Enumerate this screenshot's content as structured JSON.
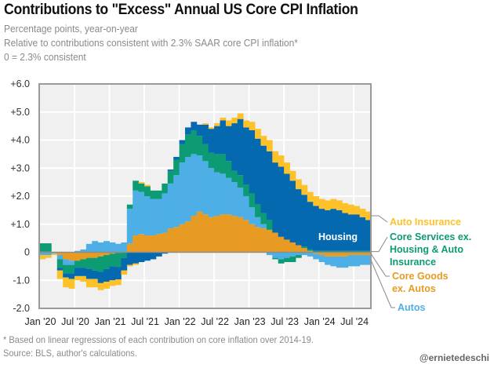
{
  "header": {
    "title": "Contributions to \"Excess\" Annual US Core CPI Inflation",
    "subtitle_lines": [
      "Percentage points, year-on-year",
      "Relative to contributions consistent with 2.3% SAAR core CPI inflation*",
      "0 = 2.3% consistent"
    ]
  },
  "footer": {
    "note": "* Based on linear regressions of each contribution on core inflation over 2014-19.",
    "source": "Source: BLS, author's calculations.",
    "handle": "@ernietedeschi"
  },
  "chart_data": {
    "type": "bar",
    "stacked": true,
    "title": "Contributions to \"Excess\" Annual US Core CPI Inflation",
    "ylabel": "Percentage points, year-on-year",
    "xlabel": "",
    "ylim": [
      -2.0,
      6.0
    ],
    "yticks": [
      6,
      5,
      4,
      3,
      2,
      1,
      0,
      -1,
      -2
    ],
    "ytick_labels": [
      "+6.0",
      "+5.0",
      "+4.0",
      "+3.0",
      "+2.0",
      "+1.0",
      "0",
      "-1.0",
      "-2.0"
    ],
    "xtick_labels": [
      "Jan '20",
      "Jul '20",
      "Jan '21",
      "Jul '21",
      "Jan '22",
      "Jul '22",
      "Jan '23",
      "Jul '23",
      "Jan '24",
      "Jul '24"
    ],
    "xtick_month_index": [
      0,
      6,
      12,
      18,
      24,
      30,
      36,
      42,
      48,
      54
    ],
    "grid": true,
    "x_start": "Jan 2020",
    "x_frequency": "monthly",
    "inline_label": "Housing",
    "series": [
      {
        "name": "Core Goods ex. Autos",
        "color": "#E89B22",
        "values": [
          0.02,
          0.02,
          0.0,
          -0.1,
          -0.25,
          -0.3,
          -0.3,
          -0.25,
          -0.2,
          -0.2,
          -0.15,
          -0.1,
          -0.05,
          -0.02,
          0.0,
          0.3,
          0.6,
          0.65,
          0.6,
          0.6,
          0.65,
          0.7,
          0.85,
          0.9,
          1.0,
          1.1,
          1.3,
          1.45,
          1.35,
          1.25,
          1.3,
          1.35,
          1.35,
          1.3,
          1.25,
          1.15,
          1.0,
          0.9,
          0.85,
          0.8,
          0.7,
          0.55,
          0.45,
          0.35,
          0.25,
          0.15,
          0.05,
          -0.05,
          -0.1,
          -0.15,
          -0.15,
          -0.15,
          -0.15,
          -0.1,
          -0.1,
          -0.1,
          -0.1
        ]
      },
      {
        "name": "Autos",
        "color": "#4DAFE6",
        "values": [
          -0.1,
          -0.1,
          -0.05,
          -0.15,
          -0.2,
          -0.15,
          0.05,
          0.1,
          0.3,
          0.4,
          0.35,
          0.4,
          0.35,
          0.3,
          0.35,
          1.25,
          1.6,
          1.5,
          1.4,
          1.3,
          1.25,
          1.4,
          1.6,
          1.85,
          2.2,
          2.3,
          2.2,
          2.0,
          1.9,
          1.75,
          1.55,
          1.45,
          1.3,
          1.2,
          1.05,
          0.85,
          0.6,
          0.35,
          0.15,
          -0.1,
          -0.2,
          -0.25,
          -0.2,
          -0.15,
          -0.1,
          -0.1,
          -0.15,
          -0.2,
          -0.25,
          -0.3,
          -0.35,
          -0.4,
          -0.4,
          -0.4,
          -0.4,
          -0.35,
          -0.35
        ]
      },
      {
        "name": "Core Services ex. Housing & Auto Insurance",
        "color": "#0C9B73",
        "values": [
          0.3,
          0.3,
          0.0,
          -0.3,
          -0.3,
          -0.3,
          -0.25,
          -0.3,
          -0.4,
          -0.45,
          -0.55,
          -0.5,
          -0.45,
          -0.5,
          -0.2,
          0.15,
          0.35,
          0.3,
          0.35,
          0.3,
          0.3,
          0.35,
          0.45,
          0.55,
          0.65,
          0.8,
          0.85,
          0.7,
          0.6,
          0.55,
          0.65,
          0.7,
          0.6,
          0.4,
          0.45,
          0.4,
          0.5,
          0.45,
          0.4,
          0.35,
          -0.05,
          -0.15,
          -0.15,
          -0.2,
          -0.1,
          0.05,
          0.05,
          0.05,
          0.05,
          0.05,
          0.05,
          0.05,
          0.05,
          0.05,
          0.05,
          0.05,
          0.05
        ]
      },
      {
        "name": "Housing",
        "color": "#0569B0",
        "values": [
          0.0,
          0.0,
          0.0,
          -0.1,
          -0.15,
          -0.2,
          -0.3,
          -0.3,
          -0.35,
          -0.3,
          -0.4,
          -0.45,
          -0.5,
          -0.45,
          -0.45,
          -0.45,
          -0.4,
          -0.35,
          -0.3,
          -0.25,
          -0.15,
          -0.05,
          0.05,
          0.1,
          0.15,
          0.25,
          0.3,
          0.4,
          0.7,
          0.85,
          1.0,
          1.2,
          1.25,
          1.7,
          2.0,
          2.05,
          2.25,
          2.35,
          2.4,
          2.45,
          2.5,
          2.5,
          2.35,
          2.2,
          2.0,
          1.85,
          1.7,
          1.6,
          1.5,
          1.45,
          1.5,
          1.45,
          1.35,
          1.3,
          1.3,
          1.2,
          1.1
        ]
      },
      {
        "name": "Auto Insurance",
        "color": "#FDC12A",
        "values": [
          -0.15,
          -0.1,
          -0.05,
          -0.3,
          -0.35,
          -0.35,
          -0.15,
          -0.2,
          -0.3,
          -0.3,
          -0.25,
          -0.25,
          -0.2,
          -0.2,
          -0.15,
          -0.05,
          -0.05,
          0.05,
          0.05,
          0.0,
          0.0,
          0.0,
          0.0,
          0.0,
          0.0,
          0.0,
          0.0,
          0.0,
          0.05,
          0.05,
          0.1,
          0.1,
          0.2,
          0.2,
          0.2,
          0.25,
          0.3,
          0.35,
          0.35,
          0.4,
          0.4,
          0.4,
          0.4,
          0.35,
          0.35,
          0.35,
          0.35,
          0.35,
          0.35,
          0.35,
          0.35,
          0.35,
          0.35,
          0.35,
          0.3,
          0.3,
          0.3
        ]
      }
    ],
    "legend": {
      "placement": "right",
      "entries": [
        {
          "label_lines": [
            "Auto Insurance"
          ],
          "color": "#FDC12A"
        },
        {
          "label_lines": [
            "Core Services ex.",
            "Housing & Auto",
            "Insurance"
          ],
          "color": "#0C9B73"
        },
        {
          "label_lines": [
            "Core Goods",
            "ex. Autos"
          ],
          "color": "#E89B22"
        },
        {
          "label_lines": [
            "Autos"
          ],
          "color": "#4DAFE6"
        }
      ]
    }
  }
}
